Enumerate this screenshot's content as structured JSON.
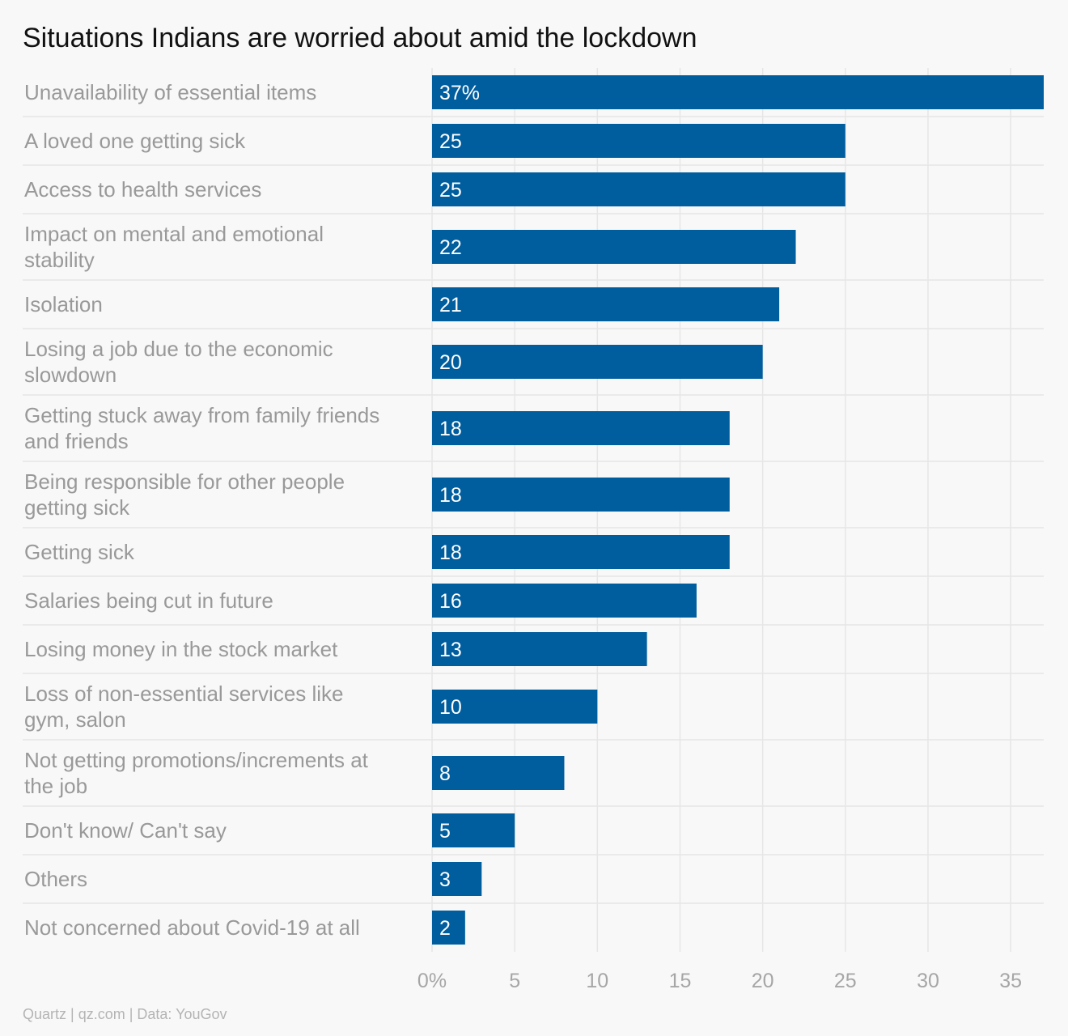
{
  "title": "Situations Indians are worried about amid the lockdown",
  "footer": "Quartz | qz.com | Data: YouGov",
  "colors": {
    "bar": "#005d9e",
    "bar_label": "#ffffff",
    "category_label": "#999999",
    "tick_label": "#a6a6a6",
    "grid": "#e6e6e6",
    "background": "#f8f8f8",
    "title": "#111111"
  },
  "chart_data": {
    "type": "bar",
    "orientation": "horizontal",
    "categories": [
      "Unavailability of essential items",
      "A loved one getting sick",
      "Access to health services",
      "Impact on mental and emotional stability",
      "Isolation",
      "Losing a job due to the economic slowdown",
      "Getting stuck away from family friends and friends",
      "Being responsible for other people getting sick",
      "Getting sick",
      "Salaries being cut in future",
      "Losing money in the stock market",
      "Loss of non-essential services like gym, salon",
      "Not getting promotions/increments at the job",
      "Don't know/ Can't say",
      "Others",
      "Not concerned about Covid-19 at all"
    ],
    "category_lines": [
      [
        "Unavailability of essential items"
      ],
      [
        "A loved one getting sick"
      ],
      [
        "Access to health services"
      ],
      [
        "Impact on mental and emotional",
        "stability"
      ],
      [
        "Isolation"
      ],
      [
        "Losing a job due to the economic",
        "slowdown"
      ],
      [
        "Getting stuck away from family friends",
        "and friends"
      ],
      [
        "Being responsible for other people",
        "getting sick"
      ],
      [
        "Getting sick"
      ],
      [
        "Salaries being cut in future"
      ],
      [
        "Losing money in the stock market"
      ],
      [
        "Loss of non-essential services like",
        "gym, salon"
      ],
      [
        "Not getting promotions/increments at",
        "the job"
      ],
      [
        "Don't know/ Can't say"
      ],
      [
        "Others"
      ],
      [
        "Not concerned about Covid-19 at all"
      ]
    ],
    "values": [
      37,
      25,
      25,
      22,
      21,
      20,
      18,
      18,
      18,
      16,
      13,
      10,
      8,
      5,
      3,
      2
    ],
    "value_labels": [
      "37%",
      "25",
      "25",
      "22",
      "21",
      "20",
      "18",
      "18",
      "18",
      "16",
      "13",
      "10",
      "8",
      "5",
      "3",
      "2"
    ],
    "xlim": [
      0,
      37
    ],
    "x_ticks": [
      0,
      5,
      10,
      15,
      20,
      25,
      30,
      35
    ],
    "x_tick_labels": [
      "0%",
      "5",
      "10",
      "15",
      "20",
      "25",
      "30",
      "35"
    ],
    "grid": true,
    "legend": "none"
  }
}
